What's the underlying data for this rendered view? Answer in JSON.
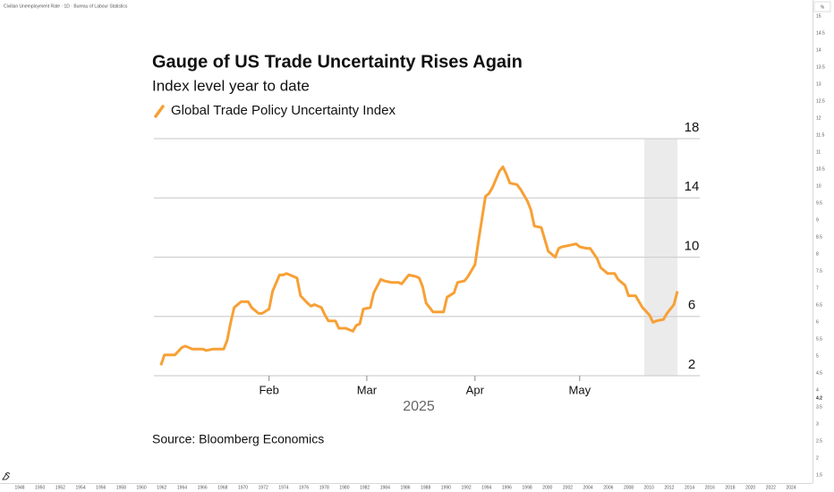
{
  "chart_data": [
    {
      "type": "line",
      "title": "Gauge of US Trade Uncertainty Rises Again",
      "subtitle": "Index level year to date",
      "source": "Source: Bloomberg Economics",
      "year_label": "2025",
      "series": [
        {
          "name": "Global Trade Policy Uncertainty Index",
          "color": "#f7a035",
          "x": [
            2,
            3,
            5,
            6,
            8,
            9,
            11,
            12,
            14,
            15,
            17,
            20,
            21,
            22,
            23,
            25,
            27,
            28,
            30,
            31,
            33,
            34,
            36,
            37,
            38,
            39,
            41,
            42,
            44,
            45,
            46,
            48,
            49,
            50,
            52,
            53,
            55,
            57,
            58,
            59,
            60,
            62,
            63,
            65,
            66,
            68,
            70,
            71,
            73,
            75,
            76,
            77,
            78,
            80,
            82,
            83,
            84,
            86,
            87,
            89,
            90,
            92,
            93,
            95,
            96,
            97,
            99,
            100,
            101,
            102,
            104,
            105,
            107,
            108,
            109,
            111,
            112,
            113,
            115,
            116,
            117,
            119,
            121,
            122,
            124,
            125,
            127,
            128,
            130,
            132,
            133,
            135,
            136,
            138,
            140,
            142,
            143,
            144,
            146,
            147,
            149,
            150
          ],
          "values": [
            2.7,
            3.4,
            3.4,
            3.4,
            3.9,
            4.0,
            3.8,
            3.8,
            3.8,
            3.7,
            3.8,
            3.8,
            4.4,
            5.6,
            6.6,
            7.0,
            7.0,
            6.6,
            6.2,
            6.2,
            6.5,
            7.7,
            8.8,
            8.8,
            8.9,
            8.8,
            8.6,
            7.4,
            6.9,
            6.7,
            6.8,
            6.6,
            6.1,
            5.7,
            5.7,
            5.2,
            5.2,
            5.0,
            5.4,
            5.5,
            6.5,
            6.6,
            7.6,
            8.5,
            8.4,
            8.3,
            8.3,
            8.2,
            8.8,
            8.7,
            8.6,
            8.0,
            6.9,
            6.3,
            6.3,
            6.3,
            7.3,
            7.6,
            8.3,
            8.4,
            8.7,
            9.5,
            11.1,
            14.1,
            14.3,
            14.7,
            15.8,
            16.1,
            15.6,
            15.0,
            14.9,
            14.6,
            13.8,
            13.2,
            12.1,
            12.0,
            11.2,
            10.4,
            10.0,
            10.6,
            10.7,
            10.8,
            10.9,
            10.7,
            10.6,
            10.6,
            9.9,
            9.3,
            8.9,
            8.9,
            8.5,
            8.1,
            7.4,
            7.4,
            6.6,
            6.1,
            5.6,
            5.7,
            5.8,
            6.2,
            6.8,
            7.7
          ]
        }
      ],
      "xlim": [
        0,
        150
      ],
      "xticks": [
        {
          "value": 33,
          "label": "Feb"
        },
        {
          "value": 61,
          "label": "Mar"
        },
        {
          "value": 92,
          "label": "Apr"
        },
        {
          "value": 122,
          "label": "May"
        }
      ],
      "ylim": [
        2,
        18
      ],
      "yticks": [
        2,
        6,
        10,
        14,
        18
      ],
      "highlight_range": [
        140.5,
        150
      ],
      "grid": true
    },
    {
      "type": "frame",
      "title": "Civilian Unemployment Rate · 1D · Bureau of Labour Statistics",
      "y_unit": "%",
      "ylim": [
        1.5,
        15
      ],
      "yticks": [
        15,
        14.5,
        14,
        13.5,
        13,
        12.5,
        12,
        11.5,
        11,
        10.5,
        10,
        9.5,
        9,
        8.5,
        8,
        7.5,
        7,
        6.5,
        6,
        5.5,
        5,
        4.5,
        4,
        3.5,
        3,
        2.5,
        2,
        1.5
      ],
      "last_value": 4.2,
      "xlim": [
        1948,
        2024
      ],
      "xticks": [
        1948,
        1950,
        1952,
        1954,
        1956,
        1958,
        1960,
        1962,
        1964,
        1966,
        1968,
        1970,
        1972,
        1974,
        1976,
        1978,
        1980,
        1982,
        1984,
        1986,
        1988,
        1990,
        1992,
        1994,
        1996,
        1998,
        2000,
        2002,
        2004,
        2006,
        2008,
        2010,
        2012,
        2014,
        2016,
        2018,
        2020,
        2022,
        2024
      ]
    }
  ]
}
